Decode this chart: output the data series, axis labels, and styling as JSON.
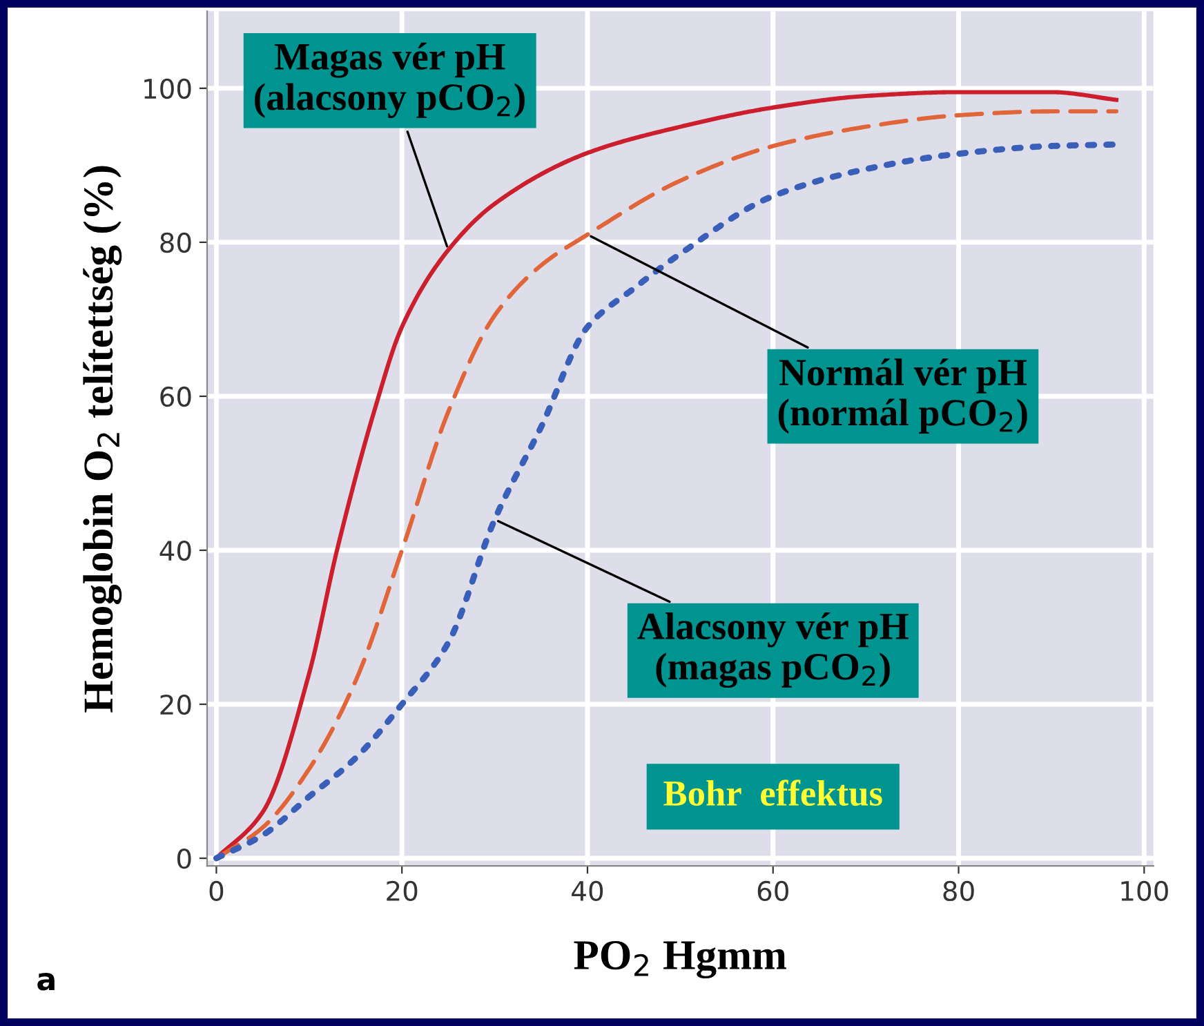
{
  "chart_data": {
    "type": "line",
    "xlabel": "PO$_{2}$ Hgmm",
    "ylabel": "Hemoglobin O$_{2}$ telítettség (%)",
    "xlim": [
      -1,
      101
    ],
    "ylim": [
      -1,
      110
    ],
    "xticks": [
      0,
      20,
      40,
      60,
      80,
      100
    ],
    "yticks": [
      0,
      20,
      40,
      60,
      80,
      100
    ],
    "grid": true,
    "legend": false,
    "series": [
      {
        "color": "#cc1f2e",
        "line_style": "solid",
        "x": [
          0,
          5,
          10,
          13,
          17,
          20,
          25,
          30,
          40,
          50,
          60,
          70,
          80,
          90,
          97
        ],
        "values": [
          0,
          6,
          24,
          40,
          58,
          69,
          79,
          85,
          91.6,
          95,
          97.5,
          99,
          99.5,
          99.5,
          98.5
        ]
      },
      {
        "color": "#e0663a",
        "line_style": "dashed",
        "x": [
          0,
          5,
          10,
          15,
          20,
          25,
          30,
          35,
          40,
          50,
          60,
          70,
          80,
          90,
          97
        ],
        "values": [
          0,
          4,
          11.6,
          23,
          40,
          58,
          70.5,
          77,
          81,
          88,
          92.5,
          95,
          96.5,
          97,
          97
        ]
      },
      {
        "color": "#3a5fb8",
        "line_style": "dotted",
        "x": [
          0,
          5,
          10,
          15,
          20,
          25,
          30,
          35,
          40,
          45,
          50,
          60,
          70,
          80,
          90,
          97
        ],
        "values": [
          0,
          3,
          8,
          13,
          20,
          28,
          44,
          56,
          69,
          74,
          78.5,
          86,
          89.5,
          91.5,
          92.5,
          92.7
        ]
      }
    ],
    "annotations": [
      {
        "text": "Magas vér pH\n(alacsony pCO$_{2}$)",
        "x": 25,
        "y": 79
      },
      {
        "text": "Normál vér pH\n(normál pCO$_{2}$)",
        "x": 40,
        "y": 81
      },
      {
        "text": "Alacsony vér pH\n(magas pCO$_{2}$)",
        "x": 30,
        "y": 44
      },
      "Bohr  effektus",
      "a"
    ]
  }
}
